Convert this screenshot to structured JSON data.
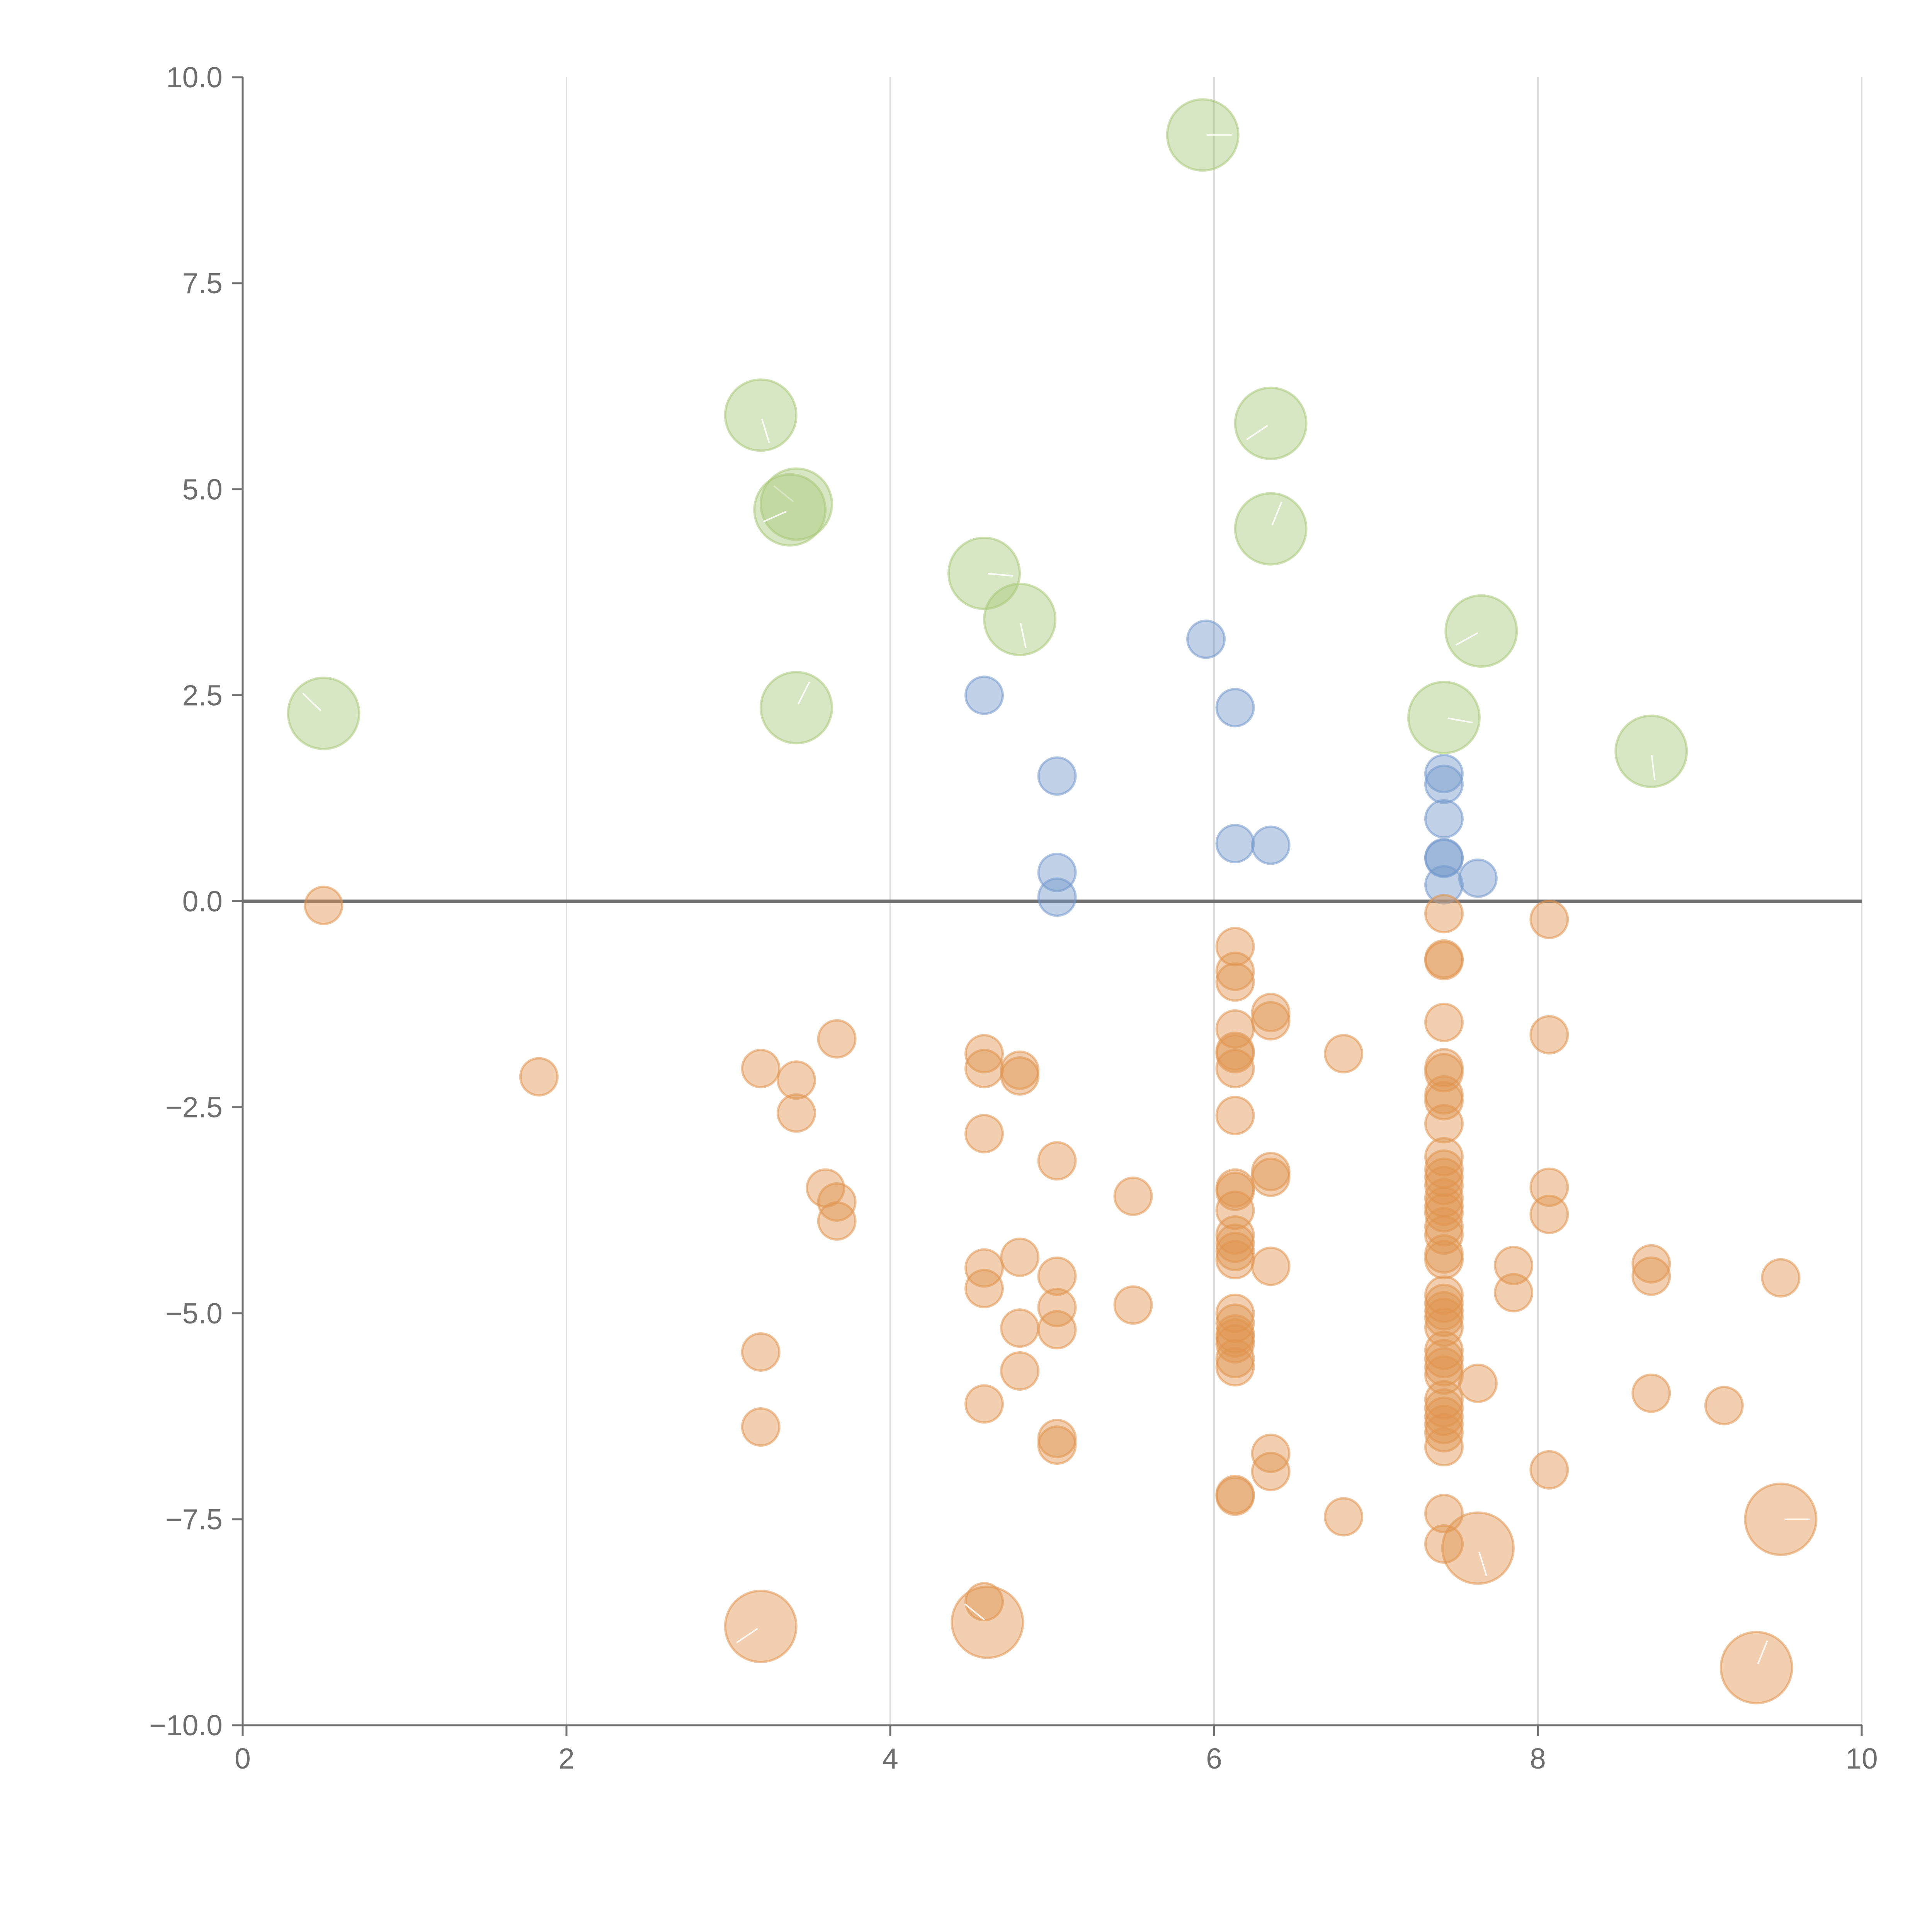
{
  "chart_data": {
    "type": "scatter",
    "title": "",
    "xlabel": "",
    "ylabel": "",
    "xlim": [
      0,
      10
    ],
    "ylim": [
      -10,
      10
    ],
    "x_ticks": [
      0,
      2,
      4,
      6,
      8,
      10
    ],
    "x_tick_labels": [
      "0",
      "2",
      "4",
      "6",
      "8",
      "10"
    ],
    "y_ticks": [
      10,
      7.5,
      5,
      2.5,
      0,
      -2.5,
      -5,
      -7.5,
      -10
    ],
    "y_tick_labels": [
      "10.0",
      "7.5",
      "5.0",
      "2.5",
      "0.0",
      "−2.5",
      "−5.0",
      "−7.5",
      "−10.0"
    ],
    "grid": "vertical",
    "zero_line": true,
    "series": [
      {
        "name": "green",
        "color": "#a9c97a",
        "size": "large",
        "points": [
          [
            5.93,
            9.3
          ],
          [
            3.2,
            5.9
          ],
          [
            6.35,
            5.8
          ],
          [
            3.42,
            4.82
          ],
          [
            6.35,
            4.52
          ],
          [
            4.58,
            3.98
          ],
          [
            4.8,
            3.42
          ],
          [
            7.65,
            3.28
          ],
          [
            0.5,
            2.28
          ],
          [
            3.42,
            2.35
          ],
          [
            7.42,
            2.23
          ],
          [
            8.7,
            1.82
          ],
          [
            3.38,
            4.75
          ]
        ]
      },
      {
        "name": "blue",
        "color": "#7499cc",
        "size": "small",
        "points": [
          [
            5.95,
            3.18
          ],
          [
            4.58,
            2.5
          ],
          [
            6.13,
            2.35
          ],
          [
            5.03,
            1.52
          ],
          [
            7.42,
            1.55
          ],
          [
            7.42,
            1.42
          ],
          [
            7.42,
            1.0
          ],
          [
            6.13,
            0.7
          ],
          [
            6.35,
            0.68
          ],
          [
            7.42,
            0.53
          ],
          [
            7.42,
            0.52
          ],
          [
            7.63,
            0.28
          ],
          [
            7.42,
            0.2
          ],
          [
            5.03,
            0.35
          ],
          [
            5.03,
            0.05
          ]
        ]
      },
      {
        "name": "orange",
        "color": "#e09550",
        "size": "small",
        "points": [
          [
            0.5,
            -0.05
          ],
          [
            7.42,
            -0.15
          ],
          [
            8.07,
            -0.22
          ],
          [
            6.13,
            -0.55
          ],
          [
            7.42,
            -0.7
          ],
          [
            7.42,
            -0.72
          ],
          [
            6.13,
            -0.85
          ],
          [
            6.13,
            -0.98
          ],
          [
            6.35,
            -1.35
          ],
          [
            6.35,
            -1.45
          ],
          [
            7.42,
            -1.47
          ],
          [
            8.07,
            -1.62
          ],
          [
            3.67,
            -1.67
          ],
          [
            6.13,
            -1.55
          ],
          [
            6.13,
            -1.82
          ],
          [
            6.13,
            -1.85
          ],
          [
            4.58,
            -1.85
          ],
          [
            6.8,
            -1.85
          ],
          [
            3.2,
            -2.03
          ],
          [
            4.58,
            -2.03
          ],
          [
            4.8,
            -2.05
          ],
          [
            6.13,
            -2.03
          ],
          [
            7.42,
            -2.02
          ],
          [
            7.42,
            -2.08
          ],
          [
            4.8,
            -2.12
          ],
          [
            1.83,
            -2.13
          ],
          [
            3.42,
            -2.17
          ],
          [
            7.42,
            -2.35
          ],
          [
            7.42,
            -2.42
          ],
          [
            3.42,
            -2.57
          ],
          [
            6.13,
            -2.6
          ],
          [
            7.42,
            -2.7
          ],
          [
            4.58,
            -2.82
          ],
          [
            5.03,
            -3.15
          ],
          [
            7.42,
            -3.1
          ],
          [
            6.35,
            -3.28
          ],
          [
            7.42,
            -3.25
          ],
          [
            6.35,
            -3.35
          ],
          [
            7.42,
            -3.35
          ],
          [
            7.42,
            -3.45
          ],
          [
            3.6,
            -3.48
          ],
          [
            6.13,
            -3.48
          ],
          [
            8.07,
            -3.47
          ],
          [
            6.13,
            -3.52
          ],
          [
            5.5,
            -3.58
          ],
          [
            7.42,
            -3.6
          ],
          [
            3.67,
            -3.65
          ],
          [
            7.42,
            -3.7
          ],
          [
            6.13,
            -3.75
          ],
          [
            7.42,
            -3.78
          ],
          [
            8.07,
            -3.8
          ],
          [
            3.67,
            -3.88
          ],
          [
            7.42,
            -3.95
          ],
          [
            6.13,
            -4.05
          ],
          [
            7.42,
            -4.05
          ],
          [
            6.13,
            -4.15
          ],
          [
            6.13,
            -4.25
          ],
          [
            7.42,
            -4.28
          ],
          [
            4.8,
            -4.32
          ],
          [
            6.13,
            -4.35
          ],
          [
            7.42,
            -4.35
          ],
          [
            8.7,
            -4.4
          ],
          [
            4.58,
            -4.45
          ],
          [
            7.85,
            -4.42
          ],
          [
            6.35,
            -4.43
          ],
          [
            8.7,
            -4.55
          ],
          [
            5.03,
            -4.55
          ],
          [
            9.5,
            -4.57
          ],
          [
            4.58,
            -4.7
          ],
          [
            7.85,
            -4.75
          ],
          [
            7.42,
            -4.78
          ],
          [
            7.42,
            -4.88
          ],
          [
            5.5,
            -4.9
          ],
          [
            5.03,
            -4.93
          ],
          [
            7.42,
            -4.97
          ],
          [
            6.13,
            -5.0
          ],
          [
            7.42,
            -5.05
          ],
          [
            6.13,
            -5.12
          ],
          [
            7.42,
            -5.17
          ],
          [
            4.8,
            -5.18
          ],
          [
            5.03,
            -5.2
          ],
          [
            6.13,
            -5.25
          ],
          [
            6.13,
            -5.3
          ],
          [
            6.13,
            -5.37
          ],
          [
            7.42,
            -5.45
          ],
          [
            3.2,
            -5.47
          ],
          [
            6.13,
            -5.55
          ],
          [
            7.42,
            -5.55
          ],
          [
            6.13,
            -5.65
          ],
          [
            7.42,
            -5.65
          ],
          [
            4.8,
            -5.7
          ],
          [
            7.42,
            -5.75
          ],
          [
            7.63,
            -5.85
          ],
          [
            8.7,
            -5.97
          ],
          [
            7.42,
            -6.05
          ],
          [
            4.58,
            -6.1
          ],
          [
            9.15,
            -6.12
          ],
          [
            7.42,
            -6.15
          ],
          [
            7.42,
            -6.25
          ],
          [
            7.42,
            -6.35
          ],
          [
            3.2,
            -6.38
          ],
          [
            7.42,
            -6.45
          ],
          [
            5.03,
            -6.52
          ],
          [
            5.03,
            -6.6
          ],
          [
            7.42,
            -6.62
          ],
          [
            6.35,
            -6.7
          ],
          [
            8.07,
            -6.9
          ],
          [
            6.35,
            -6.92
          ],
          [
            6.13,
            -7.2
          ],
          [
            6.13,
            -7.22
          ],
          [
            7.42,
            -7.43
          ],
          [
            6.8,
            -7.47
          ],
          [
            7.42,
            -7.8
          ],
          [
            4.58,
            -8.5
          ]
        ]
      },
      {
        "name": "orange-large",
        "color": "#e09550",
        "size": "large",
        "points": [
          [
            9.5,
            -7.5
          ],
          [
            7.63,
            -7.85
          ],
          [
            3.2,
            -8.8
          ],
          [
            4.6,
            -8.75
          ],
          [
            9.35,
            -9.3
          ]
        ]
      }
    ]
  }
}
